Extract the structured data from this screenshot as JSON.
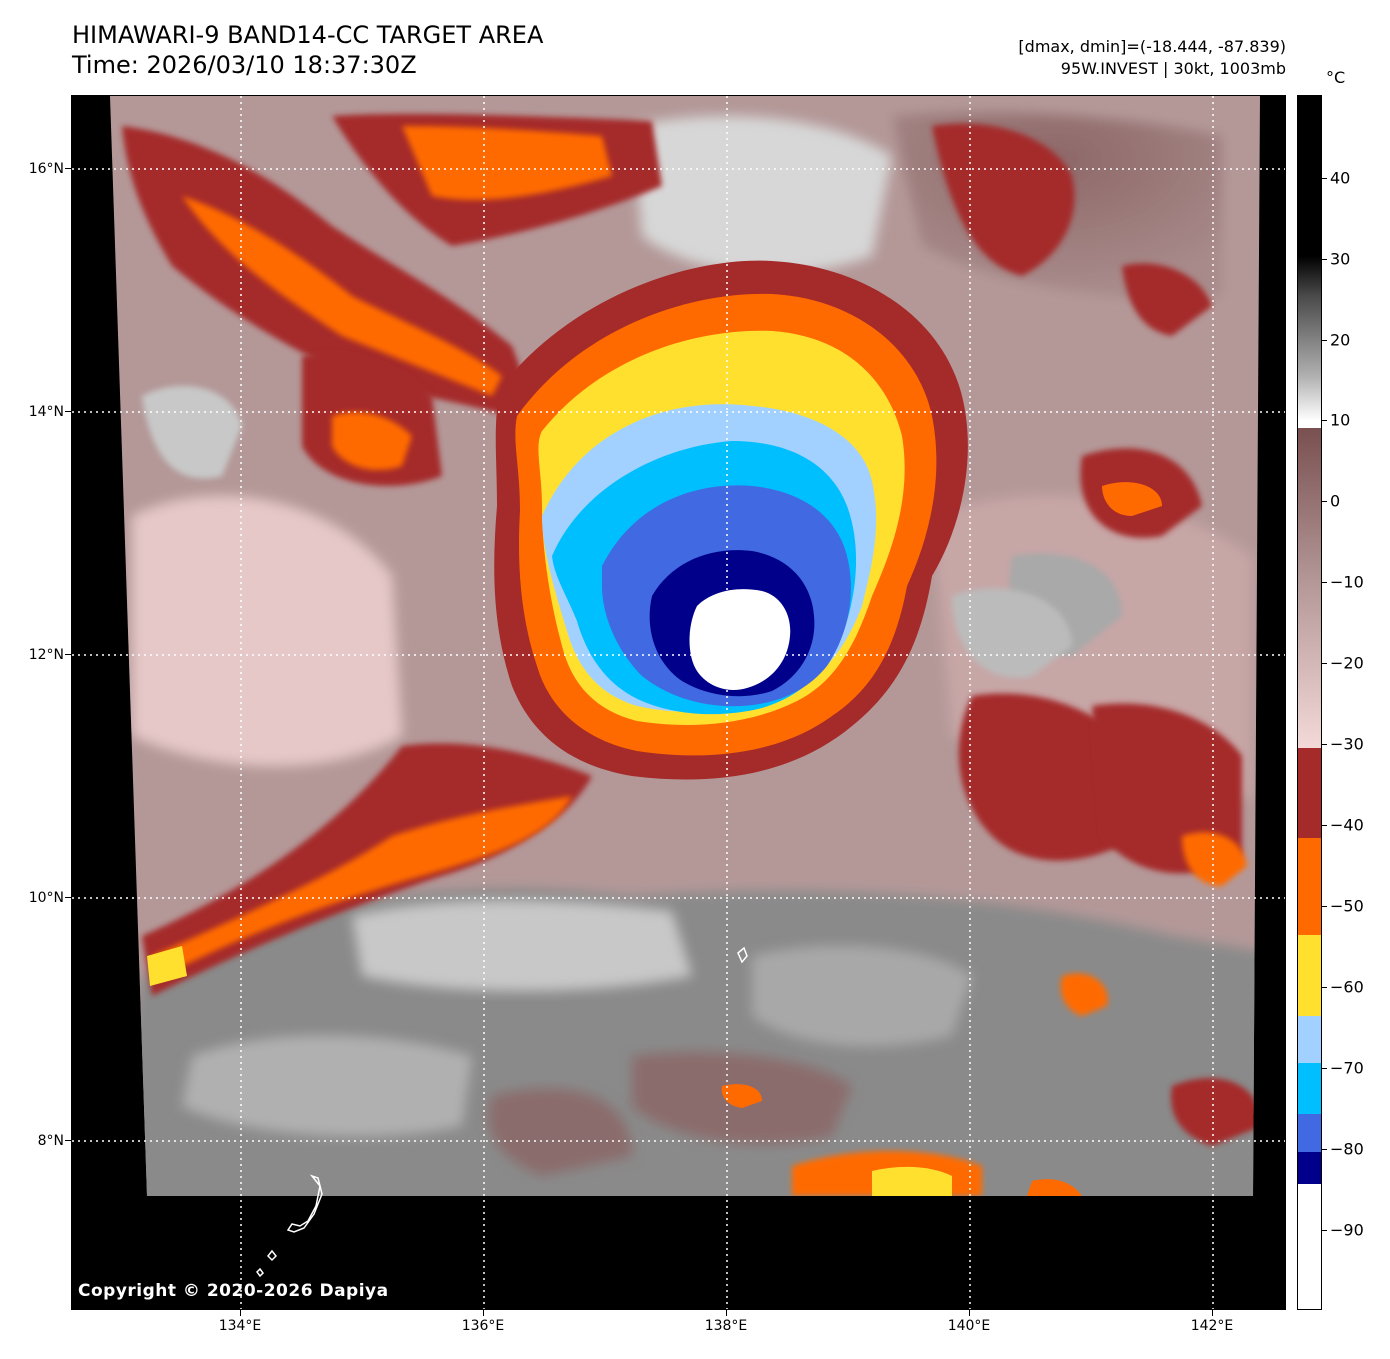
{
  "header": {
    "title_line1": "HIMAWARI-9 BAND14-CC TARGET AREA",
    "title_line2": "Time: 2026/03/10 18:37:30Z",
    "range_info": "[dmax, dmin]=(-18.444, -87.839)",
    "storm_info": "95W.INVEST | 30kt, 1003mb"
  },
  "map": {
    "copyright": "Copyright © 2020-2026 Dapiya",
    "lat_labels": [
      "16°N",
      "14°N",
      "12°N",
      "10°N",
      "8°N"
    ],
    "lon_labels": [
      "134°E",
      "136°E",
      "138°E",
      "140°E",
      "142°E"
    ]
  },
  "colorbar": {
    "unit": "°C",
    "tick_labels": [
      "40",
      "30",
      "20",
      "10",
      "0",
      "−10",
      "−20",
      "−30",
      "−40",
      "−50",
      "−60",
      "−70",
      "−80",
      "−90"
    ],
    "range": [
      -100,
      50
    ],
    "colors": {
      "white": "#ffffff",
      "navy": "#00008b",
      "royal_blue": "#4169e1",
      "deep_sky": "#00bfff",
      "light_blue": "#a3d1ff",
      "yellow": "#ffe02e",
      "orange": "#ff6a00",
      "dark_red": "#a52a2a",
      "pink": "#f3d8d8",
      "mauve": "#7a5050"
    }
  }
}
